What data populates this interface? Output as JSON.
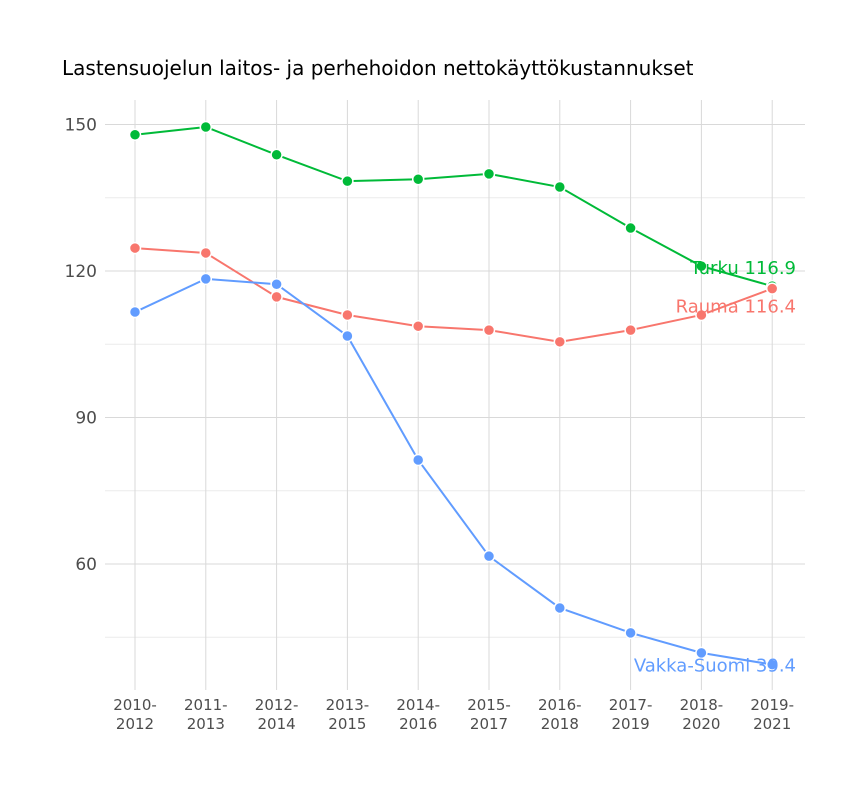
{
  "chart_data": {
    "type": "line",
    "title": "Lastensuojelun laitos- ja perhehoidon nettokäyttökustannukset",
    "xlabel": "",
    "ylabel": "",
    "categories": [
      "2010-\n2012",
      "2011-\n2013",
      "2012-\n2014",
      "2013-\n2015",
      "2014-\n2016",
      "2015-\n2017",
      "2016-\n2018",
      "2017-\n2019",
      "2018-\n2020",
      "2019-\n2021"
    ],
    "ylim": [
      33,
      154
    ],
    "yticks": [
      60,
      90,
      120,
      150
    ],
    "ytick_labels": [
      "60",
      "90",
      "120",
      "150"
    ],
    "minor_gridlines": [
      45,
      75,
      105,
      135
    ],
    "grid": true,
    "legend": "none (direct end labels)",
    "series": [
      {
        "name": "Turku",
        "color": "#00ba38",
        "end_label": "Turku 116.9",
        "values": [
          147.9,
          149.5,
          143.8,
          138.4,
          138.8,
          139.9,
          137.2,
          128.8,
          121.0,
          116.9
        ]
      },
      {
        "name": "Rauma",
        "color": "#f8766d",
        "end_label": "Rauma 116.4",
        "values": [
          124.7,
          123.7,
          114.7,
          111.0,
          108.7,
          107.9,
          105.5,
          107.9,
          111.0,
          116.4
        ]
      },
      {
        "name": "Vakka-Suomi",
        "color": "#619cff",
        "end_label": "Vakka-Suomi 39.4",
        "values": [
          111.6,
          118.4,
          117.3,
          106.7,
          81.3,
          61.6,
          51.0,
          45.9,
          41.8,
          39.4
        ]
      }
    ]
  }
}
